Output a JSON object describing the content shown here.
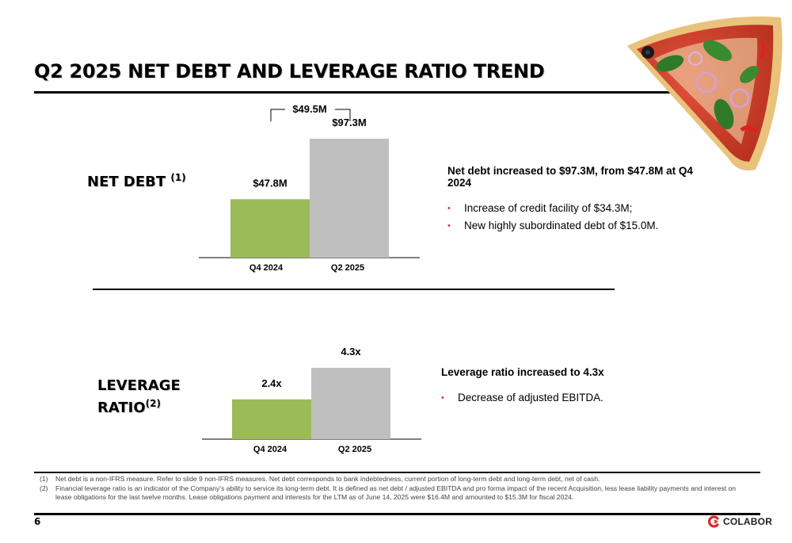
{
  "title": "Q2 2025 NET DEBT AND LEVERAGE RATIO TREND",
  "net_debt_section": {
    "label": "NET DEBT",
    "footnote_ref": "(1)",
    "difference_label": "$49.5M",
    "headline": "Net debt increased to $97.3M, from $47.8M at Q4 2024",
    "bullets": [
      "Increase of credit facility of $34.3M;",
      "New highly subordinated debt of $15.0M."
    ]
  },
  "leverage_section": {
    "label_line1": "LEVERAGE",
    "label_line2": "RATIO",
    "footnote_ref": "(2)",
    "headline": "Leverage ratio increased to 4.3x",
    "bullets": [
      "Decrease of adjusted EBITDA."
    ]
  },
  "chart_data": [
    {
      "type": "bar",
      "categories": [
        "Q4 2024",
        "Q2 2025"
      ],
      "values": [
        47.8,
        97.3
      ],
      "value_labels": [
        "$47.8M",
        "$97.3M"
      ],
      "colors": [
        "#9bbb59",
        "#bfbfbf"
      ],
      "title": "",
      "xlabel": "",
      "ylabel": ""
    },
    {
      "type": "bar",
      "categories": [
        "Q4 2024",
        "Q2 2025"
      ],
      "values": [
        2.4,
        4.3
      ],
      "value_labels": [
        "2.4x",
        "4.3x"
      ],
      "colors": [
        "#9bbb59",
        "#bfbfbf"
      ],
      "title": "",
      "xlabel": "",
      "ylabel": ""
    }
  ],
  "footnotes": [
    {
      "num": "(1)",
      "text": "Net debt is a non-IFRS measure. Refer to slide 9 non-IFRS measures.  Net debt corresponds to bank indebtedness, current portion of long-term debt and long-term debt, net of cash."
    },
    {
      "num": "(2)",
      "text": "Financial leverage ratio is an indicator of the Company's ability to service its long-term debt. It is defined as net debt / adjusted EBITDA and pro forma impact of the recent Acquisition, less lease liability payments and interest on lease obligations for the last twelve months. Lease obligations payment and interests for the LTM as of June 14, 2025 were $16.4M and amounted to $15.3M for fiscal 2024."
    }
  ],
  "page_number": "6",
  "brand": "COLABOR",
  "bullet_glyph": "•",
  "icons": [
    "colabor-logo-icon",
    "pizza-slice-image"
  ]
}
